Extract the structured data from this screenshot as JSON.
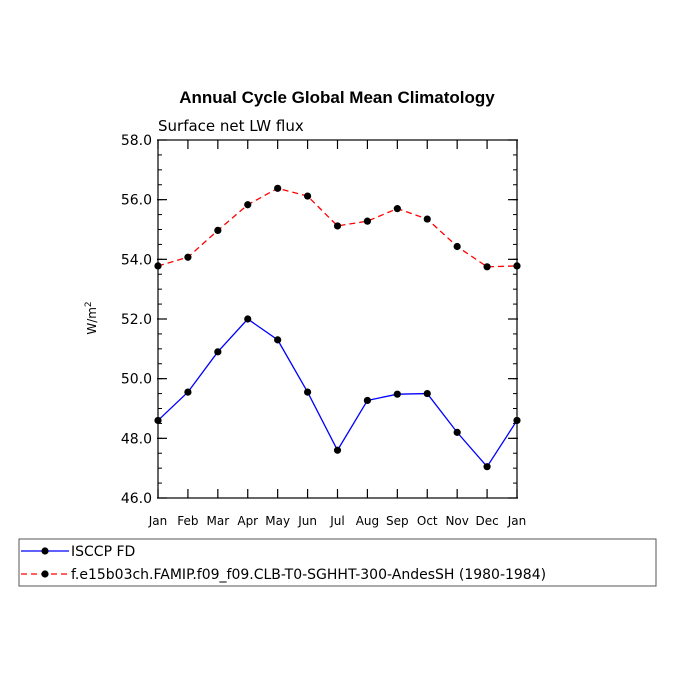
{
  "chart_data": {
    "type": "line",
    "title": "Annual Cycle Global Mean Climatology",
    "subtitle": "Surface net LW flux",
    "xlabel": "",
    "ylabel": "W/m",
    "ylabel_superscript": "2",
    "categories": [
      "Jan",
      "Feb",
      "Mar",
      "Apr",
      "May",
      "Jun",
      "Jul",
      "Aug",
      "Sep",
      "Oct",
      "Nov",
      "Dec",
      "Jan"
    ],
    "ylim": [
      46.0,
      58.0
    ],
    "yticks": [
      "46.0",
      "48.0",
      "50.0",
      "52.0",
      "54.0",
      "56.0",
      "58.0"
    ],
    "grid": false,
    "legend_position": "bottom",
    "series": [
      {
        "name": "ISCCP FD",
        "color": "#0000ff",
        "line_style": "solid",
        "marker": "filled-circle",
        "values": [
          48.6,
          49.55,
          50.9,
          52.0,
          51.3,
          49.55,
          47.6,
          49.27,
          49.48,
          49.5,
          48.2,
          47.05,
          48.6
        ]
      },
      {
        "name": "f.e15b03ch.FAMIP.f09_f09.CLB-T0-SGHHT-300-AndesSH (1980-1984)",
        "color": "#ff0000",
        "line_style": "dashed",
        "marker": "filled-circle",
        "values": [
          53.78,
          54.07,
          54.97,
          55.83,
          56.38,
          56.12,
          55.12,
          55.28,
          55.7,
          55.35,
          54.43,
          53.75,
          53.78
        ]
      }
    ]
  }
}
